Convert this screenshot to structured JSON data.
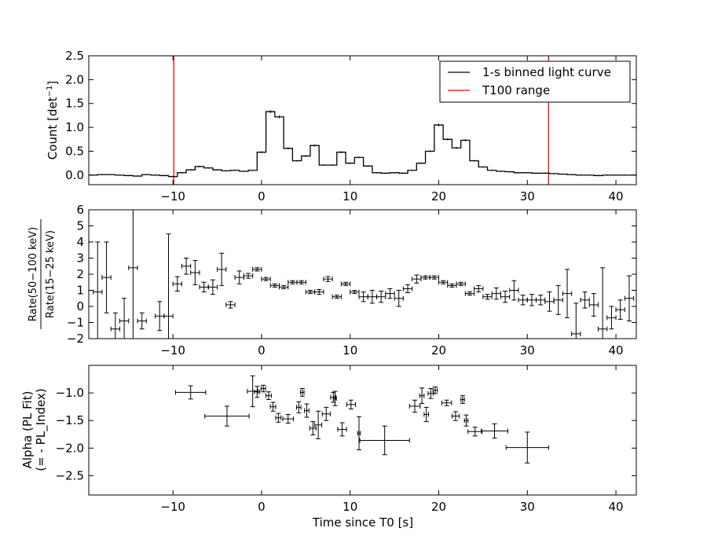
{
  "chart_data": [
    {
      "type": "line",
      "panel": "top",
      "ylabel": "Count [det",
      "ylabel_sup": "−1",
      "ylabel_end": "]",
      "xlim": [
        -19.5,
        42.3
      ],
      "ylim": [
        -0.2,
        2.5
      ],
      "x_ticks": [
        -10,
        0,
        10,
        20,
        30,
        40
      ],
      "x_tick_labels": [
        "−10",
        "0",
        "10",
        "20",
        "30",
        "40"
      ],
      "y_ticks": [
        0.0,
        0.5,
        1.0,
        1.5,
        2.0,
        2.5
      ],
      "y_tick_labels": [
        "0.0",
        "0.5",
        "1.0",
        "1.5",
        "2.0",
        "2.5"
      ],
      "legend": {
        "placement": "top-right",
        "entries": [
          {
            "label": "1-s binned light curve",
            "color": "#000000"
          },
          {
            "label": "T100 range",
            "color": "#ff0000"
          }
        ]
      },
      "series": [
        {
          "name": "1-s binned light curve",
          "color": "#000000",
          "bin_width": 1,
          "x_start": -19.5,
          "values": [
            0.0,
            0.01,
            0.01,
            0.0,
            -0.01,
            -0.02,
            0.01,
            0.0,
            -0.01,
            -0.03,
            0.05,
            0.11,
            0.18,
            0.15,
            0.11,
            0.09,
            0.1,
            0.08,
            0.1,
            0.48,
            1.33,
            1.22,
            0.56,
            0.3,
            0.4,
            0.62,
            0.21,
            0.21,
            0.48,
            0.25,
            0.37,
            0.19,
            0.05,
            0.04,
            0.05,
            0.04,
            0.1,
            0.25,
            0.5,
            1.05,
            0.75,
            0.57,
            0.73,
            0.3,
            0.17,
            0.1,
            0.08,
            0.07,
            0.05,
            0.05,
            0.04,
            0.04,
            0.03,
            0.02,
            0.01,
            0.0,
            0.0,
            -0.01,
            0.0,
            0.0,
            0.0,
            0.0
          ]
        }
      ],
      "vlines": [
        {
          "name": "T100 range",
          "x": -9.9,
          "color": "#ff0000"
        },
        {
          "name": "T100 range",
          "x": 32.4,
          "color": "#ff0000"
        }
      ]
    },
    {
      "type": "scatter",
      "panel": "middle",
      "ylabel_numerator": "Rate(50−100 keV)",
      "ylabel_denominator": "Rate(15−25 keV)",
      "xlim": [
        -19.5,
        42.3
      ],
      "ylim": [
        -2,
        6
      ],
      "x_ticks": [
        -10,
        0,
        10,
        20,
        30,
        40
      ],
      "x_tick_labels": [
        "−10",
        "0",
        "10",
        "20",
        "30",
        "40"
      ],
      "y_ticks": [
        -2,
        -1,
        0,
        1,
        2,
        3,
        4,
        5,
        6
      ],
      "y_tick_labels": [
        "−2",
        "−1",
        "0",
        "1",
        "2",
        "3",
        "4",
        "5",
        "6"
      ],
      "points": [
        {
          "x": -18.5,
          "y": 0.9,
          "xerr": 0.5,
          "yerr": 3.1
        },
        {
          "x": -17.5,
          "y": 1.8,
          "xerr": 0.5,
          "yerr": 2.2
        },
        {
          "x": -16.5,
          "y": -1.4,
          "xerr": 0.5,
          "yerr": 1.0
        },
        {
          "x": -15.5,
          "y": -0.9,
          "xerr": 0.5,
          "yerr": 1.4
        },
        {
          "x": -14.5,
          "y": 2.4,
          "xerr": 0.5,
          "yerr": 4.5
        },
        {
          "x": -13.5,
          "y": -0.9,
          "xerr": 0.5,
          "yerr": 0.5
        },
        {
          "x": -11.5,
          "y": -0.6,
          "xerr": 0.5,
          "yerr": 0.9
        },
        {
          "x": -10.5,
          "y": -0.6,
          "xerr": 0.5,
          "yerr": 5.1
        },
        {
          "x": -9.5,
          "y": 1.4,
          "xerr": 0.5,
          "yerr": 0.45
        },
        {
          "x": -8.5,
          "y": 2.5,
          "xerr": 0.5,
          "yerr": 0.5
        },
        {
          "x": -7.5,
          "y": 2.1,
          "xerr": 0.5,
          "yerr": 0.75
        },
        {
          "x": -6.5,
          "y": 1.2,
          "xerr": 0.5,
          "yerr": 0.3
        },
        {
          "x": -5.5,
          "y": 1.2,
          "xerr": 0.5,
          "yerr": 0.45
        },
        {
          "x": -4.5,
          "y": 2.3,
          "xerr": 0.5,
          "yerr": 1.0
        },
        {
          "x": -3.5,
          "y": 0.1,
          "xerr": 0.5,
          "yerr": 0.2
        },
        {
          "x": -2.5,
          "y": 1.8,
          "xerr": 0.5,
          "yerr": 0.4
        },
        {
          "x": -1.5,
          "y": 1.9,
          "xerr": 0.5,
          "yerr": 0.15
        },
        {
          "x": -0.5,
          "y": 2.3,
          "xerr": 0.5,
          "yerr": 0.1
        },
        {
          "x": 0.5,
          "y": 1.7,
          "xerr": 0.5,
          "yerr": 0.1
        },
        {
          "x": 1.5,
          "y": 1.3,
          "xerr": 0.5,
          "yerr": 0.1
        },
        {
          "x": 2.5,
          "y": 1.2,
          "xerr": 0.5,
          "yerr": 0.1
        },
        {
          "x": 3.5,
          "y": 1.5,
          "xerr": 0.5,
          "yerr": 0.1
        },
        {
          "x": 4.5,
          "y": 1.5,
          "xerr": 0.5,
          "yerr": 0.1
        },
        {
          "x": 5.5,
          "y": 0.9,
          "xerr": 0.5,
          "yerr": 0.1
        },
        {
          "x": 6.5,
          "y": 0.9,
          "xerr": 0.5,
          "yerr": 0.15
        },
        {
          "x": 7.5,
          "y": 1.7,
          "xerr": 0.5,
          "yerr": 0.15
        },
        {
          "x": 8.5,
          "y": 0.6,
          "xerr": 0.5,
          "yerr": 0.1
        },
        {
          "x": 9.5,
          "y": 1.4,
          "xerr": 0.5,
          "yerr": 0.1
        },
        {
          "x": 10.5,
          "y": 0.9,
          "xerr": 0.5,
          "yerr": 0.1
        },
        {
          "x": 11.5,
          "y": 0.6,
          "xerr": 0.5,
          "yerr": 0.3
        },
        {
          "x": 12.5,
          "y": 0.6,
          "xerr": 0.5,
          "yerr": 0.4
        },
        {
          "x": 13.5,
          "y": 0.6,
          "xerr": 0.5,
          "yerr": 0.35
        },
        {
          "x": 14.5,
          "y": 0.8,
          "xerr": 0.5,
          "yerr": 0.3
        },
        {
          "x": 15.5,
          "y": 0.5,
          "xerr": 0.5,
          "yerr": 0.5
        },
        {
          "x": 16.5,
          "y": 1.1,
          "xerr": 0.5,
          "yerr": 0.25
        },
        {
          "x": 17.5,
          "y": 1.7,
          "xerr": 0.5,
          "yerr": 0.25
        },
        {
          "x": 18.5,
          "y": 1.8,
          "xerr": 0.5,
          "yerr": 0.1
        },
        {
          "x": 19.5,
          "y": 1.8,
          "xerr": 0.5,
          "yerr": 0.1
        },
        {
          "x": 20.5,
          "y": 1.5,
          "xerr": 0.5,
          "yerr": 0.1
        },
        {
          "x": 21.5,
          "y": 1.3,
          "xerr": 0.5,
          "yerr": 0.1
        },
        {
          "x": 22.5,
          "y": 1.4,
          "xerr": 0.5,
          "yerr": 0.1
        },
        {
          "x": 23.5,
          "y": 0.8,
          "xerr": 0.5,
          "yerr": 0.1
        },
        {
          "x": 24.5,
          "y": 1.1,
          "xerr": 0.5,
          "yerr": 0.2
        },
        {
          "x": 25.5,
          "y": 0.6,
          "xerr": 0.5,
          "yerr": 0.15
        },
        {
          "x": 26.5,
          "y": 0.8,
          "xerr": 0.5,
          "yerr": 0.35
        },
        {
          "x": 27.5,
          "y": 0.6,
          "xerr": 0.5,
          "yerr": 0.35
        },
        {
          "x": 28.5,
          "y": 1.0,
          "xerr": 0.5,
          "yerr": 0.6
        },
        {
          "x": 29.5,
          "y": 0.4,
          "xerr": 0.5,
          "yerr": 0.3
        },
        {
          "x": 30.5,
          "y": 0.4,
          "xerr": 0.5,
          "yerr": 0.35
        },
        {
          "x": 31.5,
          "y": 0.4,
          "xerr": 0.5,
          "yerr": 0.3
        },
        {
          "x": 32.5,
          "y": 0.3,
          "xerr": 0.5,
          "yerr": 0.6
        },
        {
          "x": 33.5,
          "y": 0.4,
          "xerr": 0.5,
          "yerr": 0.9
        },
        {
          "x": 34.5,
          "y": 0.8,
          "xerr": 0.5,
          "yerr": 1.5
        },
        {
          "x": 35.5,
          "y": -1.7,
          "xerr": 0.5,
          "yerr": 1.9
        },
        {
          "x": 36.5,
          "y": 0.4,
          "xerr": 0.5,
          "yerr": 0.5
        },
        {
          "x": 37.5,
          "y": 0.1,
          "xerr": 0.5,
          "yerr": 0.7
        },
        {
          "x": 38.5,
          "y": -1.4,
          "xerr": 0.5,
          "yerr": 3.8
        },
        {
          "x": 39.5,
          "y": -0.7,
          "xerr": 0.5,
          "yerr": 0.7
        },
        {
          "x": 40.5,
          "y": -0.2,
          "xerr": 0.5,
          "yerr": 0.6
        },
        {
          "x": 41.5,
          "y": 0.5,
          "xerr": 0.5,
          "yerr": 1.4
        }
      ]
    },
    {
      "type": "scatter",
      "panel": "bottom",
      "xlabel": "Time since T0 [s]",
      "ylabel_line1": "Alpha (PL Fit)",
      "ylabel_line2": "(= - PL_Index)",
      "xlim": [
        -19.5,
        42.3
      ],
      "ylim": [
        -2.85,
        -0.5
      ],
      "x_ticks": [
        -10,
        0,
        10,
        20,
        30,
        40
      ],
      "x_tick_labels": [
        "−10",
        "0",
        "10",
        "20",
        "30",
        "40"
      ],
      "y_ticks": [
        -2.5,
        -2.0,
        -1.5,
        -1.0
      ],
      "y_tick_labels": [
        "−2.5",
        "−2.0",
        "−1.5",
        "−1.0"
      ],
      "points": [
        {
          "x": -8.0,
          "y": -0.99,
          "xerr": 1.7,
          "yerr": 0.12
        },
        {
          "x": -3.9,
          "y": -1.42,
          "xerr": 2.5,
          "yerr": 0.18
        },
        {
          "x": -1.0,
          "y": -0.97,
          "xerr": 0.6,
          "yerr": 0.28
        },
        {
          "x": -0.5,
          "y": -0.98,
          "xerr": 0.3,
          "yerr": 0.1
        },
        {
          "x": 0.2,
          "y": -0.92,
          "xerr": 0.25,
          "yerr": 0.06
        },
        {
          "x": 0.8,
          "y": -1.05,
          "xerr": 0.3,
          "yerr": 0.07
        },
        {
          "x": 1.3,
          "y": -1.25,
          "xerr": 0.3,
          "yerr": 0.08
        },
        {
          "x": 1.9,
          "y": -1.45,
          "xerr": 0.3,
          "yerr": 0.08
        },
        {
          "x": 3.0,
          "y": -1.47,
          "xerr": 0.6,
          "yerr": 0.08
        },
        {
          "x": 4.2,
          "y": -1.26,
          "xerr": 0.25,
          "yerr": 0.1
        },
        {
          "x": 4.6,
          "y": -0.99,
          "xerr": 0.2,
          "yerr": 0.07
        },
        {
          "x": 5.1,
          "y": -1.32,
          "xerr": 0.25,
          "yerr": 0.12
        },
        {
          "x": 5.8,
          "y": -1.64,
          "xerr": 0.35,
          "yerr": 0.12
        },
        {
          "x": 6.4,
          "y": -1.58,
          "xerr": 0.4,
          "yerr": 0.25
        },
        {
          "x": 7.3,
          "y": -1.38,
          "xerr": 0.45,
          "yerr": 0.12
        },
        {
          "x": 8.1,
          "y": -1.08,
          "xerr": 0.3,
          "yerr": 0.09
        },
        {
          "x": 8.3,
          "y": -1.1,
          "xerr": 0.15,
          "yerr": 0.13
        },
        {
          "x": 9.1,
          "y": -1.66,
          "xerr": 0.5,
          "yerr": 0.12
        },
        {
          "x": 10.1,
          "y": -1.21,
          "xerr": 0.5,
          "yerr": 0.08
        },
        {
          "x": 11.0,
          "y": -1.73,
          "xerr": 0.15,
          "yerr": 0.3
        },
        {
          "x": 13.9,
          "y": -1.86,
          "xerr": 2.8,
          "yerr": 0.26
        },
        {
          "x": 17.3,
          "y": -1.24,
          "xerr": 0.6,
          "yerr": 0.11
        },
        {
          "x": 18.1,
          "y": -1.05,
          "xerr": 0.25,
          "yerr": 0.14
        },
        {
          "x": 18.6,
          "y": -1.39,
          "xerr": 0.25,
          "yerr": 0.13
        },
        {
          "x": 19.1,
          "y": -1.01,
          "xerr": 0.3,
          "yerr": 0.09
        },
        {
          "x": 19.6,
          "y": -0.95,
          "xerr": 0.25,
          "yerr": 0.06
        },
        {
          "x": 20.9,
          "y": -1.18,
          "xerr": 0.55,
          "yerr": 0.05
        },
        {
          "x": 21.9,
          "y": -1.42,
          "xerr": 0.4,
          "yerr": 0.08
        },
        {
          "x": 22.7,
          "y": -1.12,
          "xerr": 0.2,
          "yerr": 0.07
        },
        {
          "x": 23.1,
          "y": -1.5,
          "xerr": 0.2,
          "yerr": 0.1
        },
        {
          "x": 24.1,
          "y": -1.7,
          "xerr": 0.8,
          "yerr": 0.08
        },
        {
          "x": 26.3,
          "y": -1.69,
          "xerr": 1.5,
          "yerr": 0.13
        },
        {
          "x": 30.0,
          "y": -1.99,
          "xerr": 2.4,
          "yerr": 0.28
        }
      ]
    }
  ]
}
